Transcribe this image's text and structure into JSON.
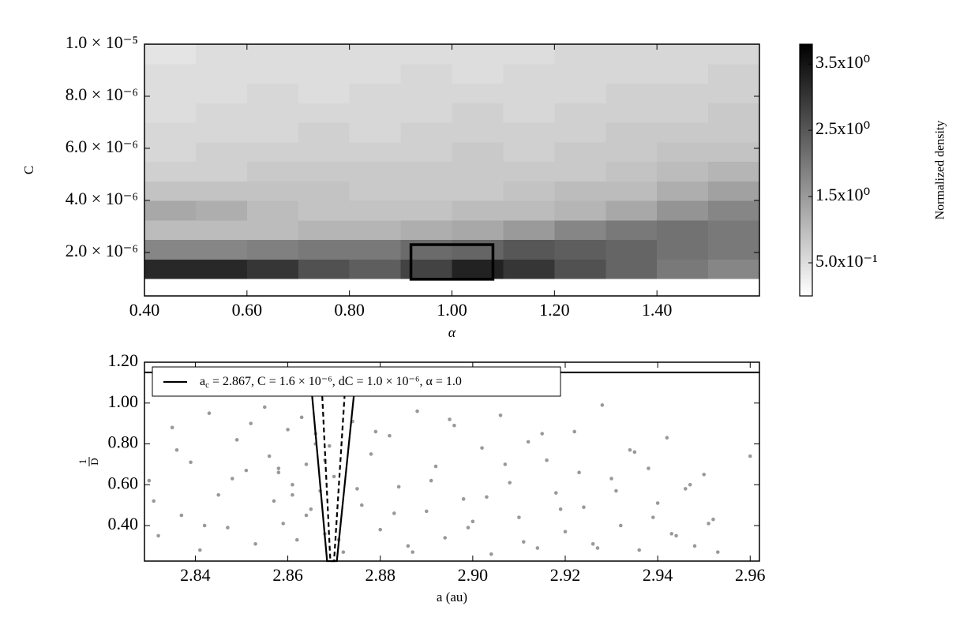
{
  "chart_data": [
    {
      "type": "heatmap",
      "xlabel": "α",
      "ylabel": "C",
      "colorbar_label": "Normalized density",
      "colormap": "gray_r",
      "xlim": [
        0.4,
        1.6
      ],
      "ylim": [
        3.3e-07,
        1e-05
      ],
      "xticks": [
        {
          "value": 0.4,
          "label": "0.40"
        },
        {
          "value": 0.6,
          "label": "0.60"
        },
        {
          "value": 0.8,
          "label": "0.80"
        },
        {
          "value": 1.0,
          "label": "1.00"
        },
        {
          "value": 1.2,
          "label": "1.20"
        },
        {
          "value": 1.4,
          "label": "1.40"
        }
      ],
      "yticks": [
        {
          "value": 2e-06,
          "label": "2.0 × 10⁻⁶"
        },
        {
          "value": 4e-06,
          "label": "4.0 × 10⁻⁶"
        },
        {
          "value": 6e-06,
          "label": "6.0 × 10⁻⁶"
        },
        {
          "value": 8e-06,
          "label": "8.0 × 10⁻⁶"
        },
        {
          "value": 1e-05,
          "label": "1.0 × 10⁻⁵"
        }
      ],
      "clim": [
        0,
        3.8
      ],
      "cticks": [
        {
          "value": 0.5,
          "label": "5.0x10⁻¹"
        },
        {
          "value": 1.5,
          "label": "1.5x10⁰"
        },
        {
          "value": 2.5,
          "label": "2.5x10⁰"
        },
        {
          "value": 3.5,
          "label": "3.5x10⁰"
        }
      ],
      "x_edges": [
        0.4,
        0.5,
        0.6,
        0.7,
        0.8,
        0.9,
        1.0,
        1.1,
        1.2,
        1.3,
        1.4,
        1.5,
        1.6
      ],
      "y_edges": [
        1e-06,
        1.75e-06,
        2.5e-06,
        3.25e-06,
        4e-06,
        4.75e-06,
        5.5e-06,
        6.25e-06,
        7e-06,
        7.75e-06,
        8.5e-06,
        9.25e-06,
        1e-05
      ],
      "values": [
        [
          3.2,
          3.2,
          3.0,
          2.6,
          2.4,
          2.8,
          3.3,
          3.0,
          2.6,
          2.3,
          2.0,
          1.8
        ],
        [
          1.8,
          1.8,
          1.9,
          2.0,
          2.0,
          2.2,
          2.3,
          2.5,
          2.4,
          2.3,
          2.1,
          2.0
        ],
        [
          1.0,
          1.0,
          1.0,
          1.1,
          1.1,
          1.2,
          1.3,
          1.5,
          1.8,
          2.0,
          2.1,
          2.0
        ],
        [
          1.3,
          1.2,
          1.0,
          0.9,
          0.9,
          0.9,
          1.0,
          1.0,
          1.1,
          1.3,
          1.6,
          1.8
        ],
        [
          0.9,
          0.9,
          0.9,
          0.9,
          0.8,
          0.8,
          0.8,
          0.9,
          1.0,
          1.0,
          1.2,
          1.4
        ],
        [
          0.7,
          0.7,
          0.8,
          0.8,
          0.8,
          0.8,
          0.8,
          0.8,
          0.8,
          0.9,
          1.0,
          1.1
        ],
        [
          0.6,
          0.7,
          0.7,
          0.7,
          0.7,
          0.7,
          0.8,
          0.7,
          0.8,
          0.8,
          0.9,
          0.9
        ],
        [
          0.6,
          0.6,
          0.6,
          0.7,
          0.6,
          0.7,
          0.7,
          0.7,
          0.7,
          0.8,
          0.8,
          0.8
        ],
        [
          0.5,
          0.6,
          0.6,
          0.6,
          0.6,
          0.6,
          0.7,
          0.6,
          0.7,
          0.7,
          0.7,
          0.8
        ],
        [
          0.5,
          0.5,
          0.6,
          0.5,
          0.6,
          0.6,
          0.6,
          0.6,
          0.6,
          0.7,
          0.7,
          0.7
        ],
        [
          0.5,
          0.5,
          0.5,
          0.5,
          0.5,
          0.6,
          0.5,
          0.6,
          0.6,
          0.6,
          0.6,
          0.7
        ],
        [
          0.4,
          0.5,
          0.5,
          0.5,
          0.5,
          0.5,
          0.5,
          0.5,
          0.6,
          0.6,
          0.6,
          0.6
        ]
      ],
      "box": {
        "x": [
          0.92,
          1.08
        ],
        "y": [
          9.7e-07,
          2.3e-06
        ]
      }
    },
    {
      "type": "scatter",
      "xlabel": "a (au)",
      "ylabel": {
        "numerator": "1",
        "denominator": "D"
      },
      "xlim": [
        2.829,
        2.962
      ],
      "ylim": [
        0.226,
        1.2
      ],
      "xticks": [
        {
          "value": 2.84,
          "label": "2.84"
        },
        {
          "value": 2.86,
          "label": "2.86"
        },
        {
          "value": 2.88,
          "label": "2.88"
        },
        {
          "value": 2.9,
          "label": "2.90"
        },
        {
          "value": 2.92,
          "label": "2.92"
        },
        {
          "value": 2.94,
          "label": "2.94"
        },
        {
          "value": 2.96,
          "label": "2.96"
        }
      ],
      "yticks": [
        {
          "value": 0.4,
          "label": "0.40"
        },
        {
          "value": 0.6,
          "label": "0.60"
        },
        {
          "value": 0.8,
          "label": "0.80"
        },
        {
          "value": 1.0,
          "label": "1.00"
        },
        {
          "value": 1.2,
          "label": "1.20"
        }
      ],
      "legend": "upper left",
      "color": "#999999",
      "x": [
        2.83,
        2.832,
        2.835,
        2.837,
        2.839,
        2.841,
        2.843,
        2.845,
        2.847,
        2.849,
        2.851,
        2.853,
        2.855,
        2.856,
        2.857,
        2.858,
        2.859,
        2.86,
        2.861,
        2.862,
        2.863,
        2.864,
        2.865,
        2.866,
        2.867,
        2.868,
        2.869,
        2.87,
        2.872,
        2.874,
        2.876,
        2.878,
        2.88,
        2.882,
        2.884,
        2.886,
        2.888,
        2.89,
        2.892,
        2.894,
        2.896,
        2.898,
        2.9,
        2.902,
        2.904,
        2.906,
        2.908,
        2.91,
        2.912,
        2.914,
        2.916,
        2.918,
        2.92,
        2.922,
        2.924,
        2.926,
        2.928,
        2.93,
        2.932,
        2.934,
        2.936,
        2.938,
        2.94,
        2.942,
        2.944,
        2.946,
        2.948,
        2.95,
        2.952,
        2.953,
        2.96,
        2.831,
        2.836,
        2.842,
        2.848,
        2.852,
        2.858,
        2.861,
        2.864,
        2.866,
        2.868,
        2.871,
        2.875,
        2.879,
        2.883,
        2.887,
        2.891,
        2.895,
        2.899,
        2.903,
        2.907,
        2.911,
        2.915,
        2.919,
        2.923,
        2.927,
        2.931,
        2.935,
        2.939,
        2.943,
        2.947,
        2.951
      ],
      "y": [
        0.62,
        0.35,
        0.88,
        0.45,
        0.71,
        0.28,
        0.95,
        0.55,
        0.39,
        0.82,
        0.67,
        0.31,
        0.98,
        0.74,
        0.52,
        0.66,
        0.41,
        0.87,
        0.6,
        0.33,
        0.93,
        0.7,
        0.48,
        0.85,
        0.57,
        0.36,
        0.79,
        0.64,
        0.27,
        0.91,
        0.5,
        0.75,
        0.38,
        0.84,
        0.59,
        0.3,
        0.96,
        0.47,
        0.69,
        0.34,
        0.89,
        0.53,
        0.42,
        0.78,
        0.26,
        0.94,
        0.61,
        0.44,
        0.81,
        0.29,
        0.72,
        0.56,
        0.37,
        0.86,
        0.49,
        0.31,
        0.99,
        0.63,
        0.4,
        0.77,
        0.28,
        0.68,
        0.51,
        0.83,
        0.35,
        0.58,
        0.3,
        0.65,
        0.43,
        0.27,
        0.74,
        0.52,
        0.77,
        0.4,
        0.63,
        0.9,
        0.68,
        0.55,
        0.45,
        0.8,
        0.72,
        0.33,
        0.58,
        0.86,
        0.46,
        0.27,
        0.62,
        0.92,
        0.39,
        0.54,
        0.7,
        0.32,
        0.85,
        0.48,
        0.66,
        0.29,
        0.57,
        0.76,
        0.44,
        0.36,
        0.6,
        0.41
      ],
      "lines": [
        {
          "name": {
            "main": "a",
            "sub": "c",
            "rest": " = 2.867,  C = 1.6 × 10⁻⁶,  dC = 1.0 × 10⁻⁶,  α = 1.0"
          },
          "color": "#000000",
          "style": "solid",
          "x": [
            2.8648,
            2.8685,
            2.8706,
            2.8748
          ],
          "y": [
            1.15,
            0.226,
            0.226,
            1.15
          ]
        },
        {
          "color": "#000000",
          "style": "dashed",
          "x": [
            2.8672,
            2.8692,
            2.87,
            2.8726
          ],
          "y": [
            1.15,
            0.226,
            0.226,
            1.15
          ]
        },
        {
          "color": "#000000",
          "style": "solid",
          "x": [
            2.829,
            2.962
          ],
          "y": [
            1.15,
            1.15
          ]
        }
      ]
    }
  ]
}
